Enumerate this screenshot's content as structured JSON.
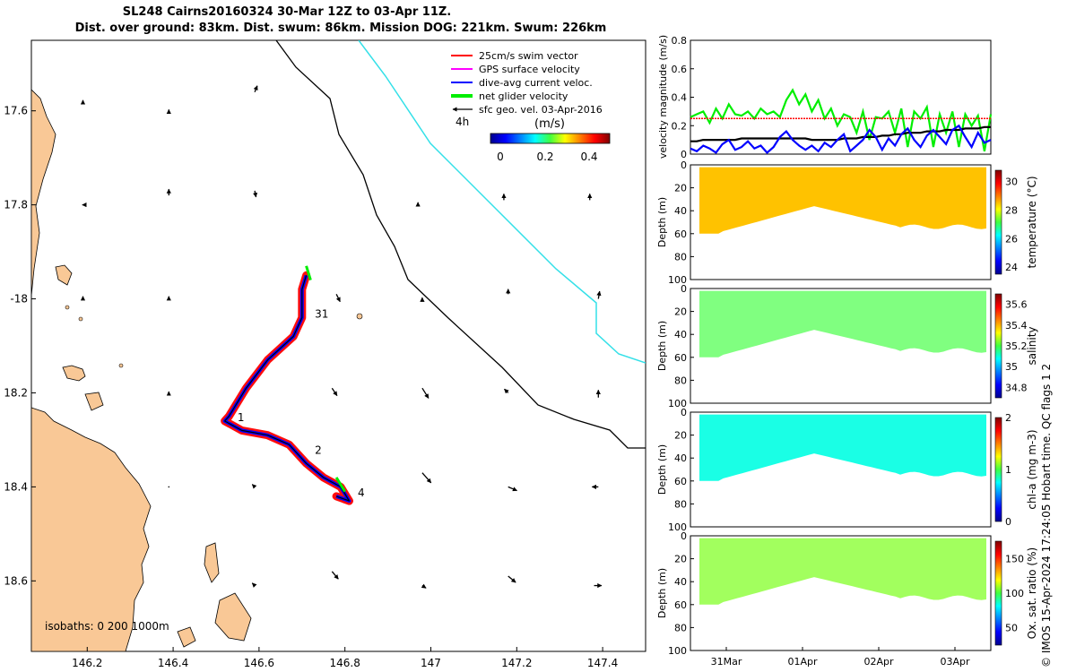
{
  "title_line1": "SL248 Cairns20160324 30-Mar 12Z to 03-Apr 11Z.",
  "title_line2": "Dist. over ground: 83km. Dist. swum: 86km. Mission DOG: 221km. Swum: 226km",
  "credit": "© IMOS 15-Apr-2024 17:24:05 Hobart time. QC flags 1  2",
  "colors": {
    "land": "#f9c896",
    "coast_line": "#000000",
    "isobath_0": "#000000",
    "isobath_200": "#000000",
    "isobath_1000": "#34e0e8",
    "swim": "#ff0000",
    "gps": "#ff00ff",
    "dac": "#0000ff",
    "net": "#00ee00",
    "geo": "#000000"
  },
  "chart_data": [
    {
      "type": "map",
      "xlim": [
        146.07,
        147.5
      ],
      "ylim": [
        -18.75,
        -17.45
      ],
      "x_ticks": [
        146.2,
        146.4,
        146.6,
        146.8,
        147,
        147.2,
        147.4
      ],
      "x_tick_labels": [
        "146.2",
        "146.4",
        "146.6",
        "146.8",
        "147",
        "147.2",
        "147.4"
      ],
      "y_ticks": [
        -17.6,
        -17.8,
        -18,
        -18.2,
        -18.4,
        -18.6
      ],
      "y_tick_labels": [
        "17.6",
        "17.8",
        "-18",
        "18.2",
        "18.4",
        "18.6"
      ],
      "legend": {
        "placement": "top-right",
        "entries": [
          "25cm/s swim vector",
          "GPS surface velocity",
          "dive-avg current veloc.",
          "net glider velocity",
          "sfc geo. vel. 03-Apr-2016"
        ],
        "scale_label": "4h",
        "colorbar_title": "(m/s)",
        "colorbar_ticks": [
          "0",
          "0.2",
          "0.4"
        ]
      },
      "isobath_label": "isobaths: 0   200  1000m",
      "track_day_labels": [
        {
          "label": "31",
          "lon": 146.73,
          "lat": -18.04
        },
        {
          "label": "1",
          "lon": 146.55,
          "lat": -18.26
        },
        {
          "label": "2",
          "lon": 146.73,
          "lat": -18.33
        },
        {
          "label": "4",
          "lon": 146.83,
          "lat": -18.42
        }
      ],
      "track": [
        [
          146.71,
          -17.95
        ],
        [
          146.7,
          -17.98
        ],
        [
          146.7,
          -18.04
        ],
        [
          146.68,
          -18.08
        ],
        [
          146.62,
          -18.13
        ],
        [
          146.57,
          -18.19
        ],
        [
          146.53,
          -18.25
        ],
        [
          146.52,
          -18.26
        ],
        [
          146.56,
          -18.28
        ],
        [
          146.62,
          -18.29
        ],
        [
          146.67,
          -18.31
        ],
        [
          146.71,
          -18.35
        ],
        [
          146.75,
          -18.38
        ],
        [
          146.79,
          -18.4
        ],
        [
          146.81,
          -18.43
        ],
        [
          146.78,
          -18.42
        ]
      ],
      "net_velocity_segments": [
        [
          [
            146.71,
            -17.93
          ],
          [
            146.72,
            -17.96
          ]
        ],
        [
          [
            146.78,
            -18.38
          ],
          [
            146.8,
            -18.41
          ]
        ]
      ],
      "geo_vectors": [
        {
          "lon": 146.0,
          "lat": -17.6,
          "u": 0.0,
          "v": -0.2
        },
        {
          "lon": 146.19,
          "lat": -17.58,
          "u": 0.0,
          "v": -0.1
        },
        {
          "lon": 146.39,
          "lat": -17.6,
          "u": 0.0,
          "v": -0.1
        },
        {
          "lon": 146.59,
          "lat": -17.56,
          "u": 0.2,
          "v": -0.5
        },
        {
          "lon": 146.0,
          "lat": -17.8,
          "u": 0.0,
          "v": -0.3
        },
        {
          "lon": 146.19,
          "lat": -17.8,
          "u": -0.05,
          "v": 0.0
        },
        {
          "lon": 146.39,
          "lat": -17.78,
          "u": 0.0,
          "v": -0.5
        },
        {
          "lon": 146.59,
          "lat": -17.77,
          "u": 0.1,
          "v": 0.5
        },
        {
          "lon": 146.97,
          "lat": -17.8,
          "u": 0.0,
          "v": -0.2
        },
        {
          "lon": 147.17,
          "lat": -17.79,
          "u": 0.0,
          "v": -0.5
        },
        {
          "lon": 147.37,
          "lat": -17.79,
          "u": 0.0,
          "v": -0.5
        },
        {
          "lon": 146.19,
          "lat": -18.0,
          "u": 0.0,
          "v": -0.2
        },
        {
          "lon": 146.39,
          "lat": -18.0,
          "u": 0.0,
          "v": -0.2
        },
        {
          "lon": 146.78,
          "lat": -17.99,
          "u": 0.3,
          "v": 0.6
        },
        {
          "lon": 146.98,
          "lat": -18.0,
          "u": 0.0,
          "v": -0.1
        },
        {
          "lon": 147.18,
          "lat": -17.99,
          "u": 0.0,
          "v": -0.4
        },
        {
          "lon": 147.39,
          "lat": -18.0,
          "u": 0.1,
          "v": -0.6
        },
        {
          "lon": 146.39,
          "lat": -18.2,
          "u": 0.0,
          "v": -0.1
        },
        {
          "lon": 146.77,
          "lat": -18.19,
          "u": 0.4,
          "v": 0.6
        },
        {
          "lon": 146.98,
          "lat": -18.19,
          "u": 0.5,
          "v": 0.8
        },
        {
          "lon": 147.18,
          "lat": -18.2,
          "u": -0.3,
          "v": -0.3
        },
        {
          "lon": 147.39,
          "lat": -18.21,
          "u": 0.0,
          "v": -0.6
        },
        {
          "lon": 146.39,
          "lat": -18.4,
          "u": 0.0,
          "v": 0.0
        },
        {
          "lon": 146.59,
          "lat": -18.4,
          "u": -0.2,
          "v": -0.2
        },
        {
          "lon": 146.98,
          "lat": -18.37,
          "u": 0.7,
          "v": 0.8
        },
        {
          "lon": 147.18,
          "lat": -18.4,
          "u": 0.7,
          "v": 0.3
        },
        {
          "lon": 147.39,
          "lat": -18.4,
          "u": -0.5,
          "v": 0.0
        },
        {
          "lon": 146.59,
          "lat": -18.61,
          "u": -0.2,
          "v": -0.2
        },
        {
          "lon": 146.77,
          "lat": -18.58,
          "u": 0.5,
          "v": 0.6
        },
        {
          "lon": 146.98,
          "lat": -18.61,
          "u": 0.3,
          "v": 0.2
        },
        {
          "lon": 147.18,
          "lat": -18.59,
          "u": 0.6,
          "v": 0.5
        },
        {
          "lon": 147.38,
          "lat": -18.61,
          "u": 0.6,
          "v": 0.0
        }
      ]
    },
    {
      "type": "line",
      "xlabel": "",
      "ylabel": "velocity magnitude (m/s)",
      "ylim": [
        0,
        0.8
      ],
      "y_ticks": [
        "0",
        "0.2",
        "0.4",
        "0.6",
        "0.8"
      ],
      "xlim": [
        0,
        4
      ],
      "series": [
        {
          "color": "#00ee00",
          "values": [
            0.26,
            0.28,
            0.3,
            0.22,
            0.32,
            0.25,
            0.35,
            0.28,
            0.27,
            0.3,
            0.25,
            0.32,
            0.28,
            0.3,
            0.26,
            0.38,
            0.45,
            0.35,
            0.42,
            0.3,
            0.38,
            0.25,
            0.32,
            0.2,
            0.28,
            0.26,
            0.15,
            0.3,
            0.1,
            0.26,
            0.25,
            0.3,
            0.15,
            0.32,
            0.05,
            0.3,
            0.25,
            0.33,
            0.05,
            0.28,
            0.15,
            0.3,
            0.05,
            0.28,
            0.2,
            0.27,
            0.02,
            0.28
          ]
        },
        {
          "color": "#ff0000",
          "values": [
            0.25,
            0.25,
            0.25,
            0.25,
            0.25,
            0.25,
            0.25,
            0.25,
            0.25,
            0.25,
            0.25,
            0.25,
            0.25,
            0.25,
            0.25,
            0.25,
            0.25,
            0.25,
            0.25,
            0.25,
            0.25,
            0.25,
            0.25,
            0.25,
            0.25,
            0.25,
            0.25,
            0.25,
            0.25,
            0.25,
            0.25,
            0.25,
            0.25,
            0.25,
            0.25,
            0.25,
            0.25,
            0.25,
            0.25,
            0.25,
            0.25,
            0.25,
            0.25,
            0.25,
            0.25,
            0.25,
            0.25,
            0.25
          ]
        },
        {
          "color": "#000000",
          "values": [
            0.09,
            0.09,
            0.1,
            0.1,
            0.1,
            0.1,
            0.1,
            0.1,
            0.11,
            0.11,
            0.11,
            0.11,
            0.11,
            0.11,
            0.11,
            0.11,
            0.11,
            0.11,
            0.11,
            0.1,
            0.1,
            0.1,
            0.1,
            0.1,
            0.11,
            0.11,
            0.11,
            0.12,
            0.12,
            0.12,
            0.13,
            0.13,
            0.14,
            0.14,
            0.15,
            0.15,
            0.15,
            0.16,
            0.16,
            0.16,
            0.17,
            0.17,
            0.17,
            0.18,
            0.18,
            0.18,
            0.19,
            0.19
          ]
        },
        {
          "color": "#0000ff",
          "values": [
            0.04,
            0.02,
            0.06,
            0.04,
            0.01,
            0.07,
            0.1,
            0.03,
            0.05,
            0.09,
            0.04,
            0.06,
            0.01,
            0.05,
            0.12,
            0.16,
            0.1,
            0.06,
            0.03,
            0.06,
            0.02,
            0.08,
            0.05,
            0.1,
            0.14,
            0.02,
            0.06,
            0.1,
            0.17,
            0.12,
            0.03,
            0.11,
            0.06,
            0.14,
            0.18,
            0.1,
            0.05,
            0.13,
            0.17,
            0.12,
            0.07,
            0.17,
            0.2,
            0.12,
            0.05,
            0.15,
            0.08,
            0.1
          ]
        }
      ]
    },
    {
      "type": "heatmap",
      "ylabel": "Depth (m)",
      "ylim": [
        0,
        100
      ],
      "y_ticks": [
        "0",
        "20",
        "40",
        "60",
        "80",
        "100"
      ],
      "colorbar_label": "temperature (°C)",
      "colorbar_ticks": [
        "24",
        "26",
        "28",
        "30"
      ],
      "clim": [
        23.5,
        30.8
      ],
      "typical_value": 28.5
    },
    {
      "type": "heatmap",
      "ylabel": "Depth (m)",
      "ylim": [
        0,
        100
      ],
      "y_ticks": [
        "0",
        "20",
        "40",
        "60",
        "80",
        "100"
      ],
      "colorbar_label": "salinity",
      "colorbar_ticks": [
        "34.8",
        "35",
        "35.2",
        "35.4",
        "35.6"
      ],
      "clim": [
        34.7,
        35.7
      ],
      "typical_value": 35.2
    },
    {
      "type": "heatmap",
      "ylabel": "Depth (m)",
      "ylim": [
        0,
        100
      ],
      "y_ticks": [
        "0",
        "20",
        "40",
        "60",
        "80",
        "100"
      ],
      "colorbar_label": "chl-a (mg m-3)",
      "colorbar_ticks": [
        "0",
        "1",
        "2"
      ],
      "clim": [
        0,
        2
      ],
      "typical_value": 0.8
    },
    {
      "type": "heatmap",
      "ylabel": "Depth (m)",
      "ylim": [
        0,
        100
      ],
      "y_ticks": [
        "0",
        "20",
        "40",
        "60",
        "80",
        "100"
      ],
      "colorbar_label": "Ox. sat. ratio (%)",
      "colorbar_ticks": [
        "50",
        "100",
        "150"
      ],
      "clim": [
        25,
        175
      ],
      "typical_value": 105,
      "x_ticks": [
        "31Mar",
        "01Apr",
        "02Apr",
        "03Apr"
      ]
    }
  ]
}
